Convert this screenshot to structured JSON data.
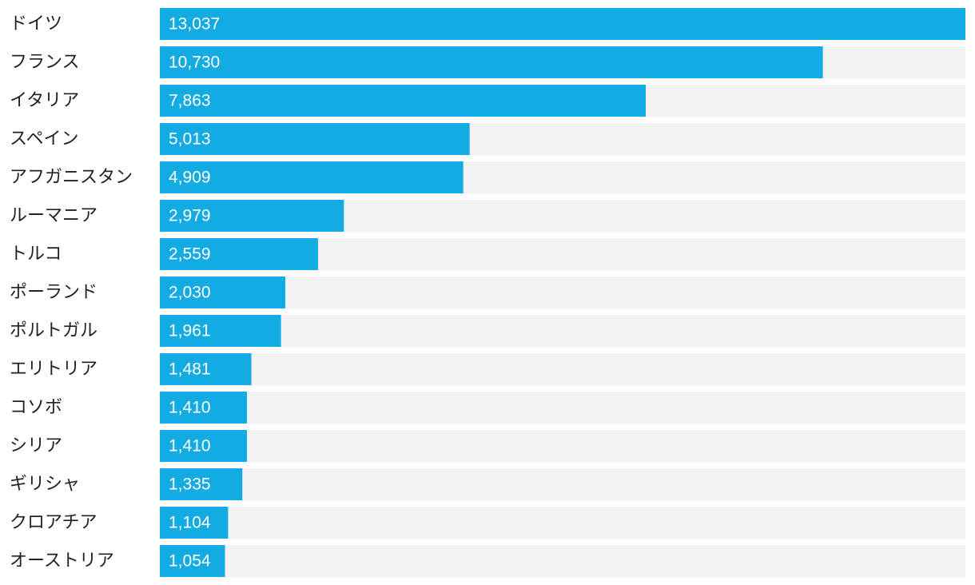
{
  "chart_data": {
    "type": "bar",
    "orientation": "horizontal",
    "categories": [
      "ドイツ",
      "フランス",
      "イタリア",
      "スペイン",
      "アフガニスタン",
      "ルーマニア",
      "トルコ",
      "ポーランド",
      "ポルトガル",
      "エリトリア",
      "コソボ",
      "シリア",
      "ギリシャ",
      "クロアチア",
      "オーストリア"
    ],
    "values": [
      13037,
      10730,
      7863,
      5013,
      4909,
      2979,
      2559,
      2030,
      1961,
      1481,
      1410,
      1410,
      1335,
      1104,
      1054
    ],
    "value_labels": [
      "13,037",
      "10,730",
      "7,863",
      "5,013",
      "4,909",
      "2,979",
      "2,559",
      "2,030",
      "1,961",
      "1,481",
      "1,410",
      "1,410",
      "1,335",
      "1,104",
      "1,054"
    ],
    "xlim": [
      0,
      13037
    ],
    "title": "",
    "xlabel": "",
    "ylabel": "",
    "grid": false,
    "legend": "none",
    "colors": {
      "bar": "#12abe3",
      "track": "#f2f2f2",
      "category_text": "#222222",
      "value_text": "#ffffff"
    }
  }
}
